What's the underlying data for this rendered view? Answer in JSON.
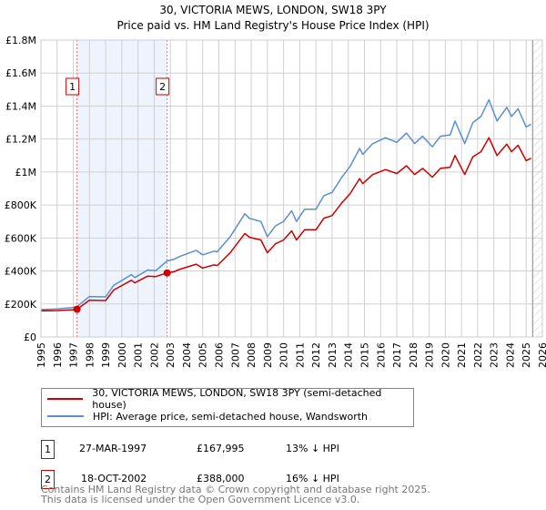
{
  "chart_data": {
    "type": "line",
    "title": "30, VICTORIA MEWS, LONDON, SW18 3PY",
    "subtitle": "Price paid vs. HM Land Registry's House Price Index (HPI)",
    "xlabel": "",
    "ylabel": "",
    "xlim": [
      1995,
      2026
    ],
    "ylim": [
      0,
      1800000
    ],
    "x_ticks": [
      "1995",
      "1996",
      "1997",
      "1998",
      "1999",
      "2000",
      "2001",
      "2002",
      "2003",
      "2004",
      "2005",
      "2006",
      "2007",
      "2008",
      "2009",
      "2010",
      "2011",
      "2012",
      "2013",
      "2014",
      "2015",
      "2016",
      "2017",
      "2018",
      "2019",
      "2020",
      "2021",
      "2022",
      "2023",
      "2024",
      "2025",
      "2026"
    ],
    "y_ticks": [
      {
        "value": 0,
        "label": "£0"
      },
      {
        "value": 200000,
        "label": "£200K"
      },
      {
        "value": 400000,
        "label": "£400K"
      },
      {
        "value": 600000,
        "label": "£600K"
      },
      {
        "value": 800000,
        "label": "£800K"
      },
      {
        "value": 1000000,
        "label": "£1M"
      },
      {
        "value": 1200000,
        "label": "£1.2M"
      },
      {
        "value": 1400000,
        "label": "£1.4M"
      },
      {
        "value": 1600000,
        "label": "£1.6M"
      },
      {
        "value": 1800000,
        "label": "£1.8M"
      }
    ],
    "grid": true,
    "x": [
      1995.0,
      1996.0,
      1997.0,
      1997.23,
      1998.0,
      1999.0,
      1999.5,
      2000.6,
      2000.8,
      2001.6,
      2002.1,
      2002.8,
      2003.2,
      2003.6,
      2004.6,
      2005.0,
      2005.7,
      2005.9,
      2006.7,
      2007.6,
      2007.9,
      2008.6,
      2009.0,
      2009.5,
      2010.0,
      2010.5,
      2010.8,
      2011.3,
      2012.0,
      2012.5,
      2013.0,
      2013.6,
      2014.1,
      2014.7,
      2014.9,
      2015.5,
      2016.3,
      2017.0,
      2017.6,
      2018.1,
      2018.6,
      2019.2,
      2019.7,
      2020.3,
      2020.6,
      2021.2,
      2021.7,
      2022.2,
      2022.7,
      2023.2,
      2023.8,
      2024.1,
      2024.5,
      2025.0,
      2025.3
    ],
    "series": [
      {
        "name": "30, VICTORIA MEWS, LONDON, SW18 3PY (semi-detached house)",
        "color": "#cc0000",
        "values": [
          158000,
          160000,
          165000,
          168000,
          223000,
          221000,
          285000,
          344000,
          328000,
          369000,
          366000,
          388000,
          395000,
          411000,
          441000,
          418000,
          437000,
          433000,
          511000,
          627000,
          604000,
          588000,
          511000,
          565000,
          588000,
          643000,
          588000,
          650000,
          650000,
          720000,
          736000,
          813000,
          867000,
          960000,
          930000,
          984000,
          1015000,
          991000,
          1038000,
          985000,
          1022000,
          969000,
          1022000,
          1029000,
          1100000,
          985000,
          1092000,
          1123000,
          1208000,
          1100000,
          1169000,
          1123000,
          1162000,
          1069000,
          1084000
        ]
      },
      {
        "name": "HPI: Average price, semi-detached house, Wandsworth",
        "color": "#5b8fd0",
        "values": [
          166000,
          170000,
          179000,
          184000,
          245000,
          243000,
          313000,
          378000,
          360000,
          406000,
          402000,
          461000,
          470000,
          489000,
          525000,
          498000,
          520000,
          516000,
          608000,
          747000,
          719000,
          700000,
          608000,
          673000,
          700000,
          765000,
          700000,
          774000,
          774000,
          857000,
          876000,
          968000,
          1032000,
          1143000,
          1107000,
          1171000,
          1208000,
          1180000,
          1236000,
          1173000,
          1217000,
          1153000,
          1217000,
          1225000,
          1309000,
          1173000,
          1300000,
          1337000,
          1438000,
          1309000,
          1392000,
          1337000,
          1383000,
          1273000,
          1290000
        ]
      }
    ],
    "sales": [
      {
        "label": "1",
        "x": 1997.23,
        "value": 167995,
        "date": "27-MAR-1997",
        "price": "£167,995",
        "hpi_diff": "13% ↓ HPI"
      },
      {
        "label": "2",
        "x": 2002.8,
        "value": 388000,
        "date": "18-OCT-2002",
        "price": "£388,000",
        "hpi_diff": "16% ↓ HPI"
      }
    ],
    "forecast_start": 2025.4,
    "legend_position": "below"
  },
  "footer": {
    "line1": "Contains HM Land Registry data © Crown copyright and database right 2025.",
    "line2": "This data is licensed under the Open Government Licence v3.0."
  }
}
